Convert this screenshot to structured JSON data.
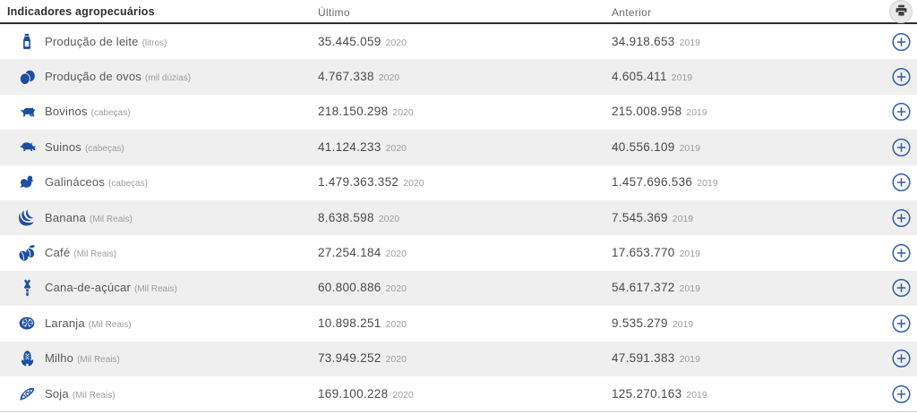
{
  "header": {
    "title": "Indicadores agropecuários",
    "col_ultimo": "Último",
    "col_anterior": "Anterior",
    "print_icon": "printer-icon"
  },
  "colors": {
    "icon_blue": "#1d4fa1",
    "plus_blue": "#2a5fb2",
    "row_alt_gray": "#efefef"
  },
  "expand_symbol": "+",
  "rows": [
    {
      "icon": "milk-bottle-icon",
      "label": "Produção de leite",
      "unit": "(litros)",
      "ultimo": "35.445.059",
      "ultimo_year": "2020",
      "anterior": "34.918.653",
      "anterior_year": "2019"
    },
    {
      "icon": "eggs-icon",
      "label": "Produção de ovos",
      "unit": "(mil dúzias)",
      "ultimo": "4.767.338",
      "ultimo_year": "2020",
      "anterior": "4.605.411",
      "anterior_year": "2019"
    },
    {
      "icon": "cattle-icon",
      "label": "Bovinos",
      "unit": "(cabeças)",
      "ultimo": "218.150.298",
      "ultimo_year": "2020",
      "anterior": "215.008.958",
      "anterior_year": "2019"
    },
    {
      "icon": "pig-icon",
      "label": "Suinos",
      "unit": "(cabeças)",
      "ultimo": "41.124.233",
      "ultimo_year": "2020",
      "anterior": "40.556.109",
      "anterior_year": "2019"
    },
    {
      "icon": "chicken-icon",
      "label": "Galináceos",
      "unit": "(cabeças)",
      "ultimo": "1.479.363.352",
      "ultimo_year": "2020",
      "anterior": "1.457.696.536",
      "anterior_year": "2019"
    },
    {
      "icon": "banana-icon",
      "label": "Banana",
      "unit": "(Mil Reais)",
      "ultimo": "8.638.598",
      "ultimo_year": "2020",
      "anterior": "7.545.369",
      "anterior_year": "2019"
    },
    {
      "icon": "coffee-icon",
      "label": "Café",
      "unit": "(Mil Reais)",
      "ultimo": "27.254.184",
      "ultimo_year": "2020",
      "anterior": "17.653.770",
      "anterior_year": "2019"
    },
    {
      "icon": "sugarcane-icon",
      "label": "Cana-de-açúcar",
      "unit": "(Mil Reais)",
      "ultimo": "60.800.886",
      "ultimo_year": "2020",
      "anterior": "54.617.372",
      "anterior_year": "2019"
    },
    {
      "icon": "orange-icon",
      "label": "Laranja",
      "unit": "(Mil Reais)",
      "ultimo": "10.898.251",
      "ultimo_year": "2020",
      "anterior": "9.535.279",
      "anterior_year": "2019"
    },
    {
      "icon": "corn-icon",
      "label": "Milho",
      "unit": "(Mil Reais)",
      "ultimo": "73.949.252",
      "ultimo_year": "2020",
      "anterior": "47.591.383",
      "anterior_year": "2019"
    },
    {
      "icon": "soy-icon",
      "label": "Soja",
      "unit": "(Mil Reais)",
      "ultimo": "169.100.228",
      "ultimo_year": "2020",
      "anterior": "125.270.163",
      "anterior_year": "2019"
    }
  ]
}
